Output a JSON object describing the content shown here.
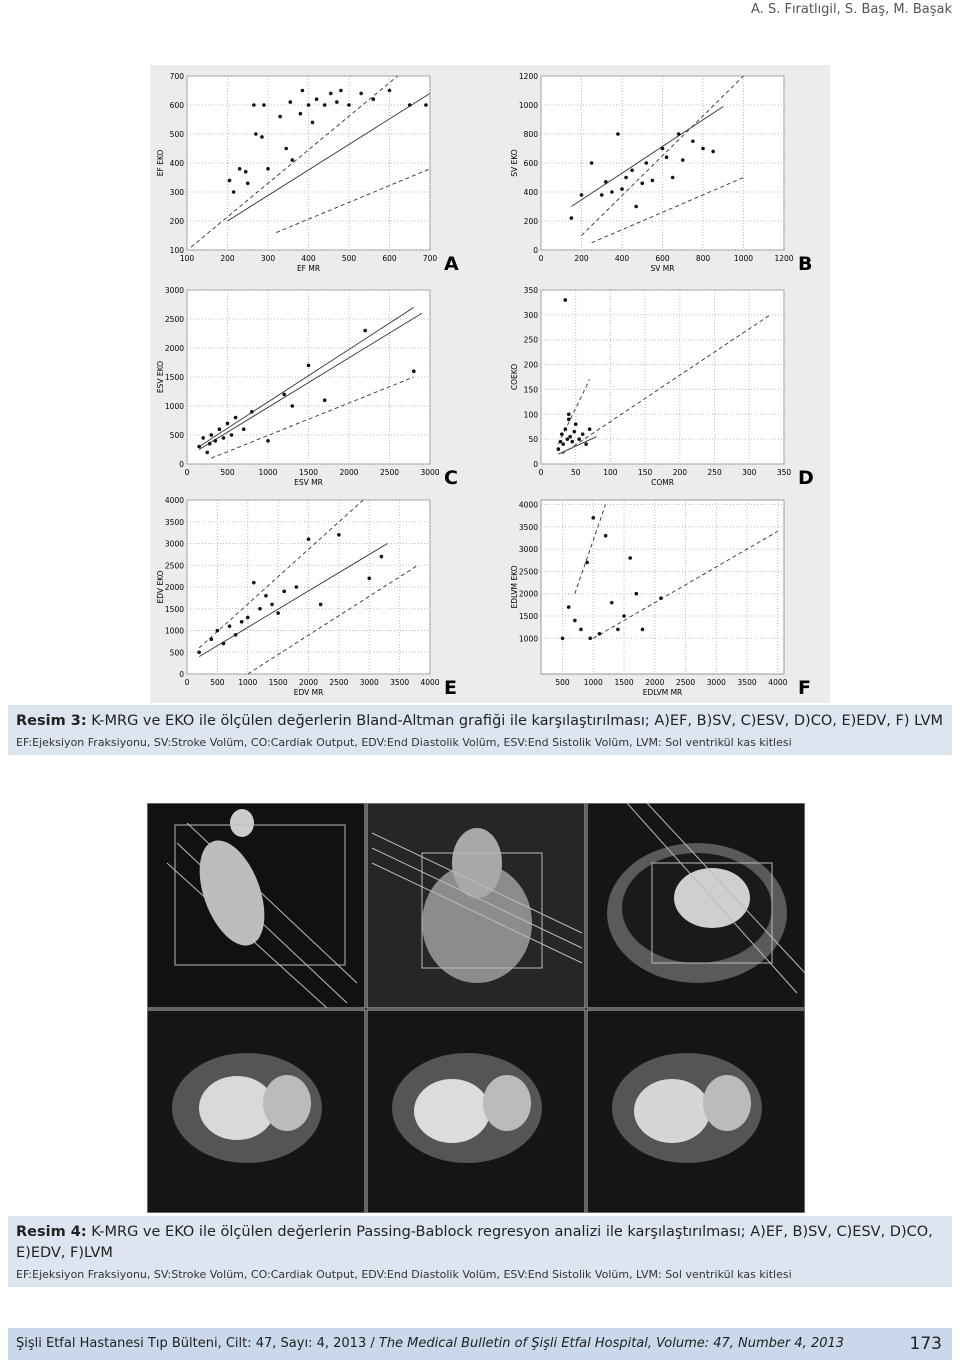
{
  "header": {
    "authors": "A. S. Fıratlıgil, S. Baş, M. Başak"
  },
  "chart_data": [
    {
      "type": "scatter",
      "title": "A",
      "x_label": "EF MR",
      "y_label": "EF EKO",
      "xlim": [
        100,
        700
      ],
      "ylim": [
        100,
        700
      ],
      "xticks": [
        100,
        200,
        300,
        400,
        500,
        600,
        700
      ],
      "yticks": [
        100,
        200,
        300,
        400,
        500,
        600,
        700
      ],
      "x": [
        205,
        215,
        230,
        245,
        250,
        265,
        270,
        285,
        290,
        300,
        330,
        345,
        355,
        360,
        380,
        385,
        400,
        410,
        420,
        440,
        455,
        470,
        480,
        500,
        530,
        560,
        600,
        650,
        690
      ],
      "values": [
        340,
        300,
        380,
        370,
        330,
        600,
        500,
        490,
        600,
        380,
        560,
        450,
        610,
        410,
        570,
        650,
        600,
        540,
        620,
        600,
        640,
        610,
        650,
        600,
        640,
        620,
        650,
        600,
        600
      ],
      "lines": [
        {
          "x": [
            110,
            620
          ],
          "values": [
            110,
            700
          ],
          "style": "dashed"
        },
        {
          "x": [
            200,
            700
          ],
          "values": [
            200,
            640
          ],
          "style": "solid"
        },
        {
          "x": [
            320,
            700
          ],
          "values": [
            160,
            380
          ],
          "style": "dashed"
        }
      ]
    },
    {
      "type": "scatter",
      "title": "B",
      "x_label": "SV MR",
      "y_label": "SV EKO",
      "xlim": [
        0,
        1200
      ],
      "ylim": [
        0,
        1200
      ],
      "xticks": [
        0,
        200,
        400,
        600,
        800,
        1000,
        1200
      ],
      "yticks": [
        0,
        200,
        400,
        600,
        800,
        1000,
        1200
      ],
      "x": [
        150,
        200,
        250,
        300,
        320,
        350,
        380,
        400,
        420,
        450,
        470,
        500,
        520,
        550,
        600,
        620,
        650,
        680,
        700,
        750,
        800,
        850
      ],
      "values": [
        220,
        380,
        600,
        380,
        470,
        400,
        800,
        420,
        500,
        550,
        300,
        460,
        600,
        480,
        700,
        640,
        500,
        800,
        620,
        750,
        700,
        680
      ],
      "lines": [
        {
          "x": [
            150,
            900
          ],
          "values": [
            300,
            990
          ],
          "style": "solid"
        },
        {
          "x": [
            200,
            1000
          ],
          "values": [
            100,
            1200
          ],
          "style": "dashed"
        },
        {
          "x": [
            250,
            1000
          ],
          "values": [
            50,
            500
          ],
          "style": "dashed"
        }
      ]
    },
    {
      "type": "scatter",
      "title": "C",
      "x_label": "ESV MR",
      "y_label": "ESV EKO",
      "xlim": [
        0,
        3000
      ],
      "ylim": [
        0,
        3000
      ],
      "xticks": [
        0,
        500,
        1000,
        1500,
        2000,
        2500,
        3000
      ],
      "yticks": [
        0,
        500,
        1000,
        1500,
        2000,
        2500,
        3000
      ],
      "x": [
        150,
        200,
        250,
        280,
        300,
        350,
        400,
        450,
        500,
        550,
        600,
        700,
        800,
        1000,
        1200,
        1300,
        1500,
        1700,
        2200,
        2800
      ],
      "values": [
        300,
        450,
        200,
        350,
        500,
        400,
        600,
        450,
        700,
        500,
        800,
        600,
        900,
        400,
        1200,
        1000,
        1700,
        1100,
        2300,
        1600
      ],
      "lines": [
        {
          "x": [
            150,
            2800
          ],
          "values": [
            300,
            2700
          ],
          "style": "solid"
        },
        {
          "x": [
            150,
            2900
          ],
          "values": [
            250,
            2600
          ],
          "style": "solid"
        },
        {
          "x": [
            300,
            2800
          ],
          "values": [
            100,
            1500
          ],
          "style": "dashed"
        }
      ]
    },
    {
      "type": "scatter",
      "title": "D",
      "x_label": "COMR",
      "y_label": "COEKO",
      "xlim": [
        0,
        350
      ],
      "ylim": [
        0,
        350
      ],
      "xticks": [
        0,
        50,
        100,
        150,
        200,
        250,
        300,
        350
      ],
      "yticks": [
        0,
        50,
        100,
        150,
        200,
        250,
        300,
        350
      ],
      "x": [
        25,
        28,
        30,
        32,
        35,
        38,
        40,
        42,
        45,
        48,
        50,
        55,
        60,
        65,
        70,
        35,
        40
      ],
      "values": [
        30,
        45,
        60,
        40,
        70,
        50,
        100,
        55,
        45,
        65,
        80,
        50,
        60,
        40,
        70,
        330,
        90
      ],
      "lines": [
        {
          "x": [
            25,
            70
          ],
          "values": [
            40,
            170
          ],
          "style": "dashed"
        },
        {
          "x": [
            25,
            80
          ],
          "values": [
            20,
            55
          ],
          "style": "solid"
        },
        {
          "x": [
            30,
            330
          ],
          "values": [
            20,
            300
          ],
          "style": "dashed"
        }
      ]
    },
    {
      "type": "scatter",
      "title": "E",
      "x_label": "EDV MR",
      "y_label": "EDV EKO",
      "xlim": [
        0,
        4000
      ],
      "ylim": [
        0,
        4000
      ],
      "xticks": [
        0,
        500,
        1000,
        1500,
        2000,
        2500,
        3000,
        3500,
        4000
      ],
      "yticks": [
        0,
        500,
        1000,
        1500,
        2000,
        2500,
        3000,
        3500,
        4000
      ],
      "x": [
        200,
        400,
        500,
        600,
        700,
        800,
        900,
        1000,
        1100,
        1200,
        1300,
        1400,
        1500,
        1600,
        1800,
        2000,
        2200,
        2500,
        3000,
        3200
      ],
      "values": [
        500,
        800,
        1000,
        700,
        1100,
        900,
        1200,
        1300,
        2100,
        1500,
        1800,
        1600,
        1400,
        1900,
        2000,
        3100,
        1600,
        3200,
        2200,
        2700
      ],
      "lines": [
        {
          "x": [
            200,
            2900
          ],
          "values": [
            600,
            4000
          ],
          "style": "dashed"
        },
        {
          "x": [
            200,
            3300
          ],
          "values": [
            400,
            3000
          ],
          "style": "solid"
        },
        {
          "x": [
            1000,
            3800
          ],
          "values": [
            0,
            2500
          ],
          "style": "dashed"
        }
      ]
    },
    {
      "type": "scatter",
      "title": "F",
      "x_label": "EDLVM MR",
      "y_label": "EDLVM EKO",
      "xlim": [
        150,
        4100
      ],
      "ylim": [
        200,
        4100
      ],
      "xticks": [
        500,
        1000,
        1500,
        2000,
        2500,
        3000,
        3500,
        4000
      ],
      "yticks": [
        1000,
        1500,
        2000,
        2500,
        3000,
        3500,
        4000
      ],
      "x": [
        500,
        600,
        700,
        800,
        900,
        950,
        1000,
        1100,
        1200,
        1300,
        1400,
        1500,
        1600,
        1700,
        1800,
        2100
      ],
      "values": [
        1000,
        1700,
        1400,
        1200,
        2700,
        1000,
        3700,
        1100,
        3300,
        1800,
        1200,
        1500,
        2800,
        2000,
        1200,
        1900
      ],
      "lines": [
        {
          "x": [
            700,
            1200
          ],
          "values": [
            2000,
            4000
          ],
          "style": "dashed"
        },
        {
          "x": [
            1000,
            4000
          ],
          "values": [
            1000,
            3400
          ],
          "style": "dashed"
        }
      ]
    }
  ],
  "caption3": {
    "label": "Resim 3:",
    "text": "K-MRG ve EKO ile ölçülen değerlerin Bland-Altman grafiği ile karşılaştırılması; A)EF, B)SV, C)ESV, D)CO, E)EDV, F) LVM",
    "abbreviations": "EF:Ejeksiyon Fraksiyonu, SV:Stroke Volüm, CO:Cardiak Output, EDV:End Diastolik Volüm, ESV:End Sistolik Volüm, LVM: Sol ventrikül kas kitlesi"
  },
  "caption4": {
    "label": "Resim 4:",
    "text": "K-MRG ve EKO ile ölçülen değerlerin Passing-Bablock regresyon analizi ile karşılaştırılması; A)EF, B)SV, C)ESV, D)CO, E)EDV, F)LVM",
    "abbreviations": "EF:Ejeksiyon Fraksiyonu, SV:Stroke Volüm, CO:Cardiak Output, EDV:End Diastolik Volüm, ESV:End Sistolik Volüm, LVM: Sol ventrikül kas kitlesi"
  },
  "footer": {
    "journal_tr": "Şişli Etfal Hastanesi Tıp Bülteni, Cilt: 47, Sayı: 4, 2013 /",
    "journal_en": "The Medical Bulletin of Şişli Etfal Hospital, Volume: 47, Number 4, 2013",
    "page": "173"
  }
}
